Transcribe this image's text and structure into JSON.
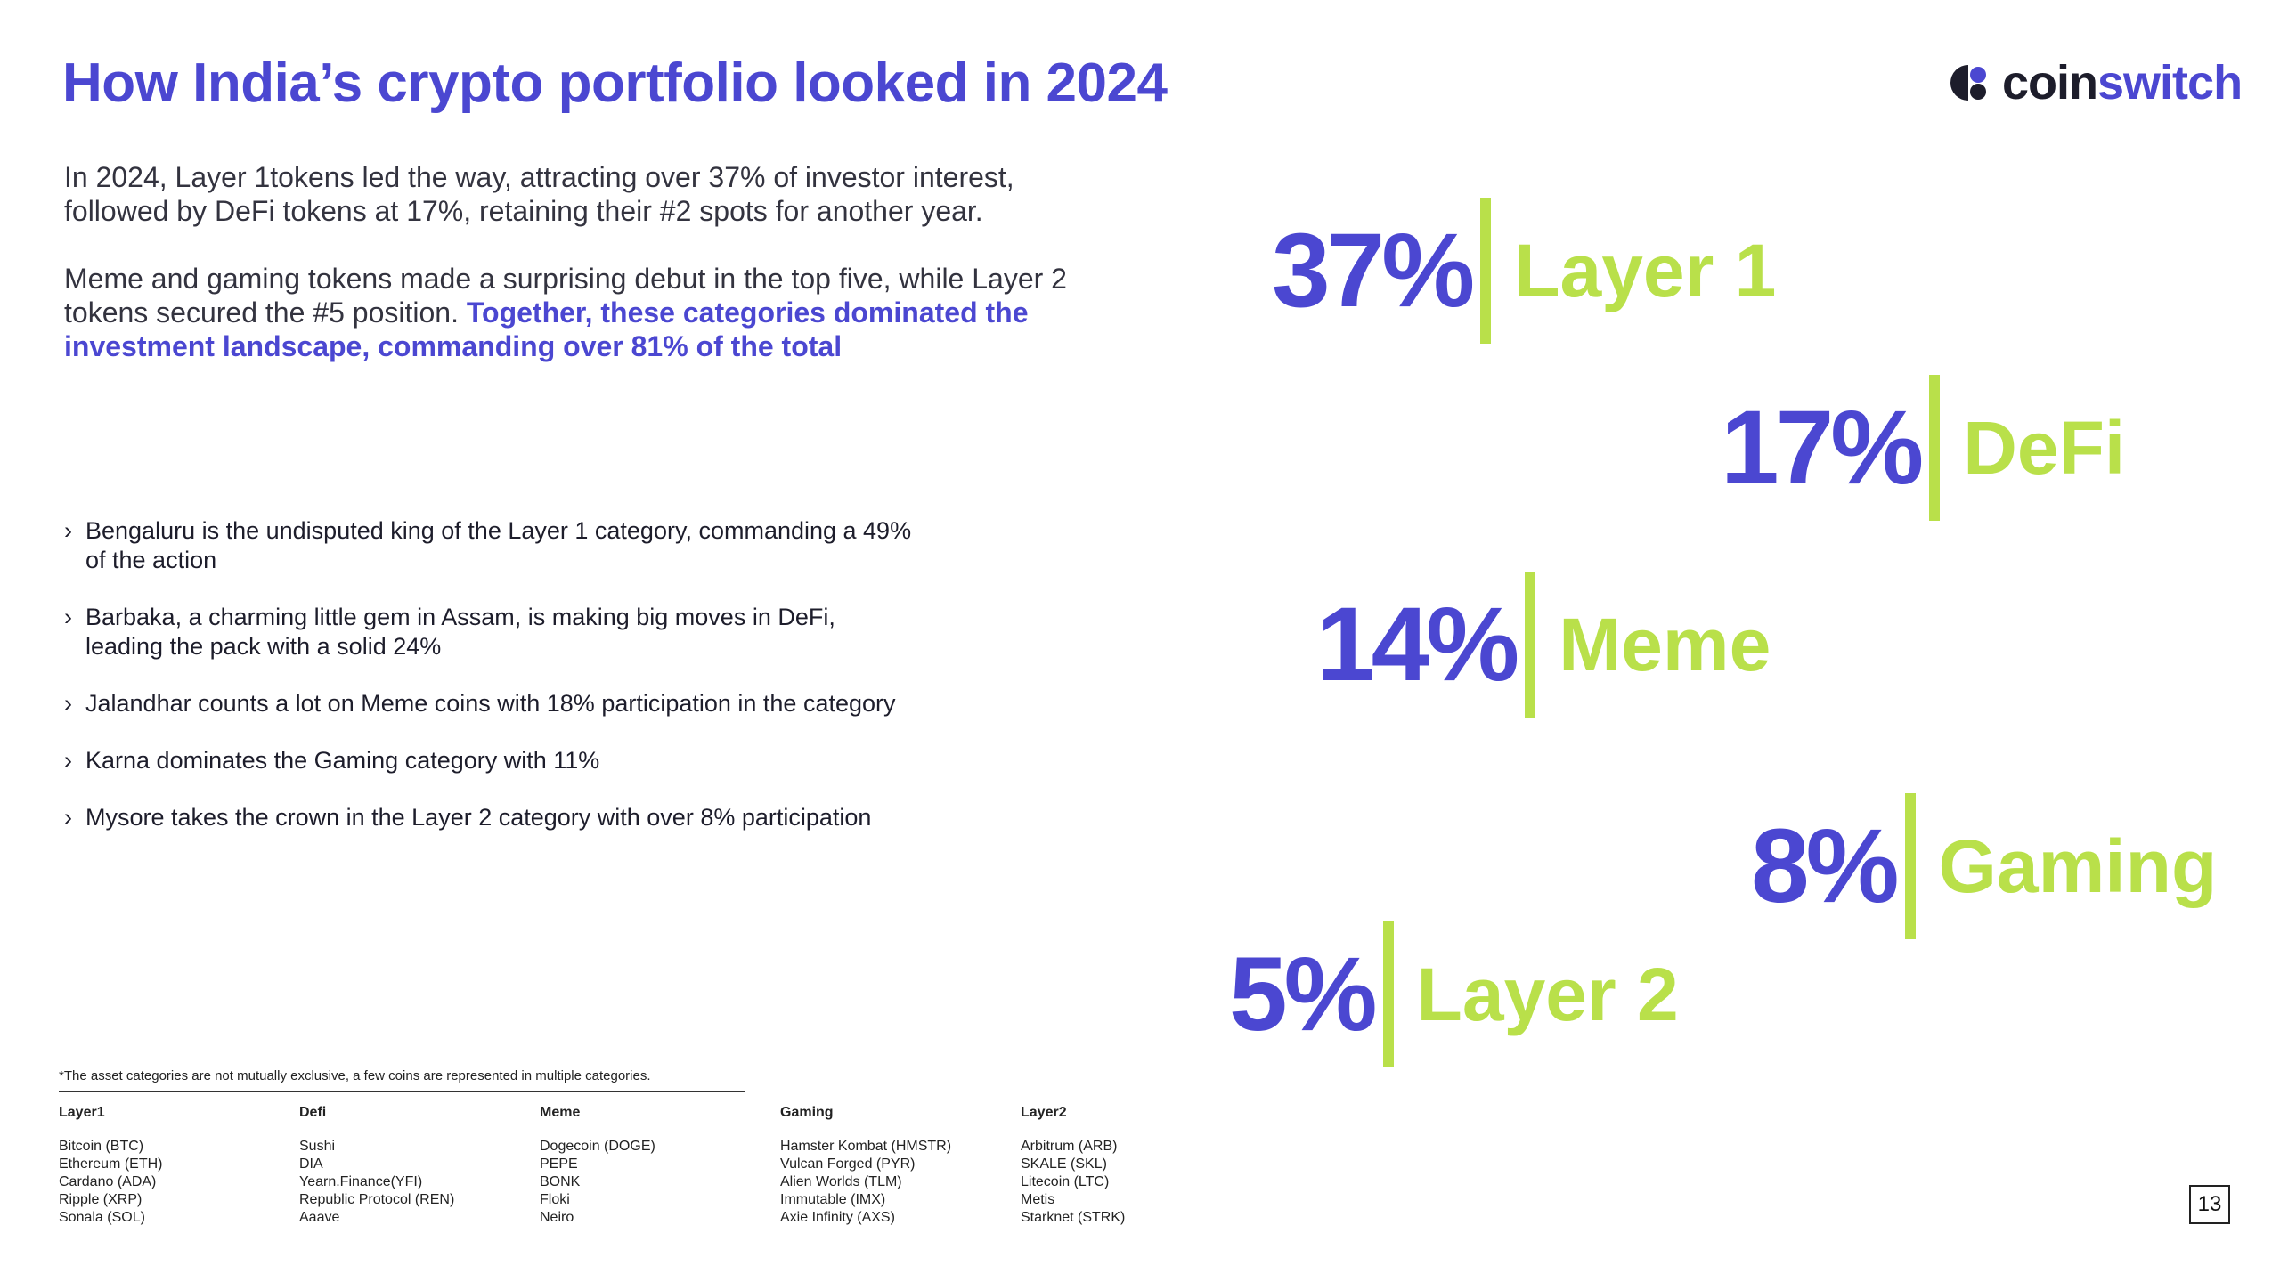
{
  "title": "How India’s crypto portfolio looked in 2024",
  "logo": {
    "text_main": "coin",
    "text_accent": "switch"
  },
  "intro": {
    "p1": "In 2024, Layer 1tokens led the way, attracting over 37% of investor interest, followed by DeFi tokens at 17%, retaining their #2 spots for another year.",
    "p2_plain": "Meme and gaming tokens made a surprising debut in the top five, while Layer 2 tokens secured the #5 position. ",
    "p2_highlight": "Together, these categories dominated the investment landscape, commanding over 81% of the total"
  },
  "bullets": [
    "Bengaluru is the undisputed king of the Layer 1 category, commanding a 49% of the action",
    "Barbaka, a charming little gem in Assam, is making big moves in DeFi, leading the pack with a solid 24%",
    "Jalandhar counts a lot on Meme coins with 18% participation in the category",
    "Karna dominates the Gaming category with 11%",
    "Mysore takes the crown in the Layer 2 category with over 8% participation"
  ],
  "stats": [
    {
      "pct": "37%",
      "label": "Layer 1"
    },
    {
      "pct": "17%",
      "label": "DeFi"
    },
    {
      "pct": "14%",
      "label": "Meme"
    },
    {
      "pct": "8%",
      "label": "Gaming"
    },
    {
      "pct": "5%",
      "label": "Layer 2"
    }
  ],
  "footnote": "*The asset categories are not mutually exclusive, a few coins are represented in multiple categories.",
  "categories": [
    {
      "header": "Layer1",
      "items": [
        "Bitcoin (BTC)",
        "Ethereum (ETH)",
        "Cardano (ADA)",
        "Ripple (XRP)",
        "Sonala (SOL)"
      ]
    },
    {
      "header": "Defi",
      "items": [
        "Sushi",
        "DIA",
        "Yearn.Finance(YFI)",
        "Republic Protocol (REN)",
        "Aaave"
      ]
    },
    {
      "header": "Meme",
      "items": [
        "Dogecoin (DOGE)",
        "PEPE",
        "BONK",
        "Floki",
        "Neiro"
      ]
    },
    {
      "header": "Gaming",
      "items": [
        "Hamster Kombat (HMSTR)",
        "Vulcan Forged (PYR)",
        "Alien Worlds (TLM)",
        "Immutable (IMX)",
        "Axie Infinity (AXS)"
      ]
    },
    {
      "header": "Layer2",
      "items": [
        "Arbitrum (ARB)",
        "SKALE (SKL)",
        "Litecoin (LTC)",
        "Metis",
        "Starknet (STRK)"
      ]
    }
  ],
  "page_number": "13",
  "colors": {
    "primary": "#4b47d1",
    "accent": "#b9e04a",
    "text": "#1d1d2b"
  },
  "icons": {
    "logo": "coinswitch-logo-icon",
    "bullet": "chevron-right-icon"
  }
}
